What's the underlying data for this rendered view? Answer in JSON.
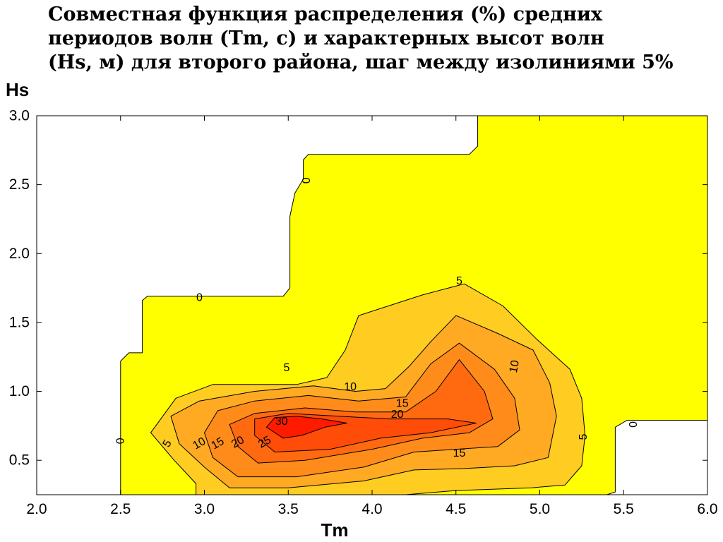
{
  "chart_data": {
    "type": "contour",
    "title_lines": [
      "Совместная функция распределения (%) средних",
      "периодов волн (Tm, с) и характерных высот волн",
      "(Hs, м) для второго района, шаг между изолиниями 5%"
    ],
    "xlabel": "Tm",
    "ylabel": "Hs",
    "xlim": [
      2.0,
      6.0
    ],
    "ylim": [
      0.25,
      3.0
    ],
    "xticks": [
      2.0,
      2.5,
      3.0,
      3.5,
      4.0,
      4.5,
      5.0,
      5.5,
      6.0
    ],
    "xtick_labels": [
      "2.0",
      "2.5",
      "3.0",
      "3.5",
      "4.0",
      "4.5",
      "5.0",
      "5.5",
      "6.0"
    ],
    "yticks": [
      0.5,
      1.0,
      1.5,
      2.0,
      2.5,
      3.0
    ],
    "ytick_labels": [
      "0.5",
      "1.0",
      "1.5",
      "2.0",
      "2.5",
      "3.0"
    ],
    "grid": false,
    "contour_interval": 5,
    "levels": [
      {
        "value": 0,
        "color": "#ffff00",
        "polygon": [
          [
            2.5,
            0.25
          ],
          [
            2.5,
            1.22
          ],
          [
            2.55,
            1.28
          ],
          [
            2.63,
            1.28
          ],
          [
            2.63,
            1.66
          ],
          [
            2.66,
            1.69
          ],
          [
            3.47,
            1.69
          ],
          [
            3.51,
            1.75
          ],
          [
            3.51,
            2.27
          ],
          [
            3.54,
            2.44
          ],
          [
            3.59,
            2.54
          ],
          [
            3.59,
            2.68
          ],
          [
            3.62,
            2.72
          ],
          [
            4.58,
            2.72
          ],
          [
            4.63,
            2.78
          ],
          [
            4.63,
            3.0
          ],
          [
            6.0,
            3.0
          ],
          [
            6.0,
            0.79
          ],
          [
            5.52,
            0.79
          ],
          [
            5.45,
            0.74
          ],
          [
            5.45,
            0.27
          ],
          [
            5.4,
            0.25
          ]
        ],
        "labels": [
          {
            "text": "0",
            "x": 2.97,
            "y": 1.68,
            "rot": 0
          },
          {
            "text": "0",
            "x": 3.61,
            "y": 2.53,
            "rot": -90
          },
          {
            "text": "0",
            "x": 2.5,
            "y": 0.64,
            "rot": -90
          },
          {
            "text": "0",
            "x": 5.56,
            "y": 0.76,
            "rot": -90
          }
        ]
      },
      {
        "value": 5,
        "color": "#ffcc22",
        "polygon": [
          [
            2.95,
            0.25
          ],
          [
            2.95,
            0.33
          ],
          [
            2.82,
            0.5
          ],
          [
            2.68,
            0.7
          ],
          [
            2.83,
            0.95
          ],
          [
            3.05,
            1.05
          ],
          [
            3.55,
            1.05
          ],
          [
            3.73,
            1.1
          ],
          [
            3.84,
            1.3
          ],
          [
            3.92,
            1.55
          ],
          [
            4.3,
            1.7
          ],
          [
            4.55,
            1.78
          ],
          [
            4.78,
            1.62
          ],
          [
            4.98,
            1.38
          ],
          [
            5.18,
            1.16
          ],
          [
            5.25,
            0.95
          ],
          [
            5.27,
            0.68
          ],
          [
            5.25,
            0.46
          ],
          [
            5.15,
            0.32
          ],
          [
            4.95,
            0.3
          ],
          [
            4.5,
            0.28
          ],
          [
            4.3,
            0.26
          ],
          [
            4.2,
            0.25
          ]
        ],
        "labels": [
          {
            "text": "5",
            "x": 4.52,
            "y": 1.8,
            "rot": 0
          },
          {
            "text": "5",
            "x": 3.49,
            "y": 1.17,
            "rot": 0
          },
          {
            "text": "5",
            "x": 2.78,
            "y": 0.62,
            "rot": -60
          },
          {
            "text": "5",
            "x": 5.26,
            "y": 0.67,
            "rot": -90
          }
        ]
      },
      {
        "value": 10,
        "color": "#ffaa22",
        "polygon": [
          [
            3.15,
            0.3
          ],
          [
            3.0,
            0.45
          ],
          [
            2.85,
            0.62
          ],
          [
            2.8,
            0.82
          ],
          [
            2.97,
            0.93
          ],
          [
            3.3,
            1.0
          ],
          [
            3.65,
            1.04
          ],
          [
            3.9,
            1.0
          ],
          [
            4.08,
            1.02
          ],
          [
            4.22,
            1.18
          ],
          [
            4.35,
            1.36
          ],
          [
            4.5,
            1.55
          ],
          [
            4.75,
            1.42
          ],
          [
            4.96,
            1.3
          ],
          [
            5.06,
            1.06
          ],
          [
            5.1,
            0.82
          ],
          [
            5.05,
            0.52
          ],
          [
            4.85,
            0.46
          ],
          [
            4.55,
            0.44
          ],
          [
            4.25,
            0.43
          ],
          [
            3.95,
            0.35
          ],
          [
            3.5,
            0.3
          ]
        ],
        "labels": [
          {
            "text": "10",
            "x": 3.87,
            "y": 1.03,
            "rot": 0
          },
          {
            "text": "10",
            "x": 2.97,
            "y": 0.62,
            "rot": -30
          },
          {
            "text": "10",
            "x": 4.85,
            "y": 1.18,
            "rot": -80
          }
        ]
      },
      {
        "value": 15,
        "color": "#ff8c1a",
        "polygon": [
          [
            3.2,
            0.38
          ],
          [
            3.05,
            0.52
          ],
          [
            3.0,
            0.7
          ],
          [
            3.08,
            0.86
          ],
          [
            3.3,
            0.93
          ],
          [
            3.62,
            0.97
          ],
          [
            3.92,
            0.93
          ],
          [
            4.2,
            0.96
          ],
          [
            4.35,
            1.2
          ],
          [
            4.52,
            1.35
          ],
          [
            4.73,
            1.16
          ],
          [
            4.85,
            0.95
          ],
          [
            4.88,
            0.72
          ],
          [
            4.75,
            0.6
          ],
          [
            4.5,
            0.58
          ],
          [
            4.25,
            0.56
          ],
          [
            3.95,
            0.45
          ],
          [
            3.55,
            0.38
          ]
        ],
        "labels": [
          {
            "text": "15",
            "x": 4.18,
            "y": 0.91,
            "rot": 0
          },
          {
            "text": "15",
            "x": 3.08,
            "y": 0.62,
            "rot": -30
          },
          {
            "text": "15",
            "x": 4.52,
            "y": 0.55,
            "rot": 0
          }
        ]
      },
      {
        "value": 20,
        "color": "#ff6a10",
        "polygon": [
          [
            3.32,
            0.48
          ],
          [
            3.2,
            0.6
          ],
          [
            3.15,
            0.76
          ],
          [
            3.3,
            0.84
          ],
          [
            3.6,
            0.88
          ],
          [
            3.9,
            0.85
          ],
          [
            4.2,
            0.85
          ],
          [
            4.38,
            1.0
          ],
          [
            4.52,
            1.23
          ],
          [
            4.67,
            1.0
          ],
          [
            4.72,
            0.8
          ],
          [
            4.58,
            0.7
          ],
          [
            4.3,
            0.66
          ],
          [
            4.0,
            0.58
          ],
          [
            3.6,
            0.5
          ]
        ],
        "labels": [
          {
            "text": "20",
            "x": 4.15,
            "y": 0.83,
            "rot": 0
          },
          {
            "text": "20",
            "x": 3.2,
            "y": 0.63,
            "rot": -30
          }
        ]
      },
      {
        "value": 25,
        "color": "#ff4c08",
        "polygon": [
          [
            3.42,
            0.56
          ],
          [
            3.3,
            0.68
          ],
          [
            3.3,
            0.8
          ],
          [
            3.5,
            0.84
          ],
          [
            3.8,
            0.82
          ],
          [
            4.1,
            0.8
          ],
          [
            4.45,
            0.8
          ],
          [
            4.62,
            0.77
          ],
          [
            4.35,
            0.7
          ],
          [
            4.05,
            0.66
          ],
          [
            3.75,
            0.58
          ]
        ],
        "labels": [
          {
            "text": "25",
            "x": 3.36,
            "y": 0.63,
            "rot": -30
          }
        ]
      },
      {
        "value": 30,
        "color": "#ff1a00",
        "polygon": [
          [
            3.47,
            0.66
          ],
          [
            3.37,
            0.74
          ],
          [
            3.42,
            0.81
          ],
          [
            3.55,
            0.82
          ],
          [
            3.7,
            0.8
          ],
          [
            3.85,
            0.77
          ],
          [
            3.72,
            0.74
          ],
          [
            3.58,
            0.68
          ]
        ],
        "labels": [
          {
            "text": "30",
            "x": 3.46,
            "y": 0.78,
            "rot": 0
          }
        ]
      }
    ]
  }
}
